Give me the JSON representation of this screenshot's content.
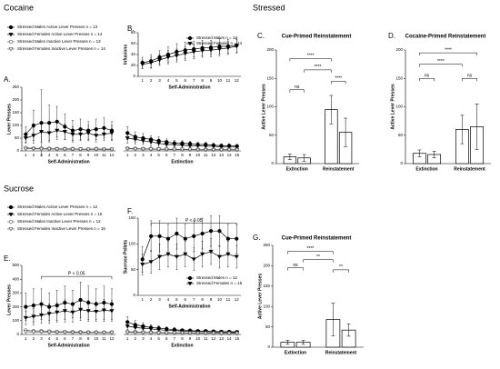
{
  "sections": [
    "Cocaine",
    "Stressed",
    "Sucrose"
  ],
  "chart_data": [
    {
      "type": "line",
      "label": "A.",
      "ylabel": "Lever Presses",
      "xlabel": [
        "Self-Administration",
        "Extinction"
      ],
      "categories": [
        1,
        2,
        3,
        4,
        5,
        6,
        7,
        8,
        9,
        10,
        11,
        12,
        1,
        2,
        3,
        4,
        5,
        6,
        7,
        8,
        9,
        10,
        11,
        12,
        13,
        14,
        15
      ],
      "ylim": [
        0,
        250
      ],
      "yticks": [
        0,
        50,
        100,
        150,
        200,
        250
      ],
      "legend": "outside-top-left",
      "series": [
        {
          "name": "Stressed Males Active Lever Presses n = 13",
          "marker": "circle",
          "color": "#000000",
          "fill": "#000000",
          "values": [
            65,
            100,
            110,
            110,
            115,
            95,
            80,
            85,
            80,
            85,
            90,
            80,
            70,
            55,
            50,
            45,
            40,
            35,
            30,
            30,
            28,
            25,
            25,
            22,
            20,
            20,
            18
          ],
          "errors": [
            30,
            60,
            130,
            70,
            60,
            50,
            40,
            40,
            35,
            40,
            40,
            35,
            25,
            20,
            18,
            15,
            15,
            12,
            12,
            10,
            10,
            10,
            10,
            8,
            8,
            8,
            8
          ]
        },
        {
          "name": "Stressed Females Active Lever Presses n = 14",
          "marker": "triangle",
          "color": "#000000",
          "fill": "#000000",
          "values": [
            50,
            60,
            75,
            70,
            80,
            75,
            65,
            65,
            70,
            60,
            65,
            70,
            50,
            45,
            40,
            35,
            30,
            25,
            25,
            22,
            20,
            20,
            18,
            18,
            15,
            15,
            15
          ],
          "errors": [
            20,
            30,
            40,
            35,
            35,
            30,
            30,
            25,
            30,
            25,
            25,
            30,
            20,
            18,
            15,
            15,
            12,
            10,
            10,
            10,
            8,
            8,
            8,
            8,
            6,
            6,
            6
          ]
        },
        {
          "name": "Stressed Males Inactive Lever Presses n = 13",
          "marker": "circle",
          "color": "#555555",
          "fill": "#ffffff",
          "values": [
            12,
            10,
            10,
            9,
            8,
            8,
            8,
            7,
            7,
            8,
            7,
            7,
            10,
            9,
            8,
            8,
            7,
            7,
            6,
            6,
            6,
            5,
            5,
            5,
            5,
            5,
            5
          ],
          "errors": [
            5,
            5,
            5,
            5,
            5,
            5,
            5,
            5,
            5,
            5,
            5,
            5,
            5,
            5,
            5,
            5,
            5,
            5,
            5,
            5,
            5,
            5,
            5,
            5,
            5,
            5,
            5
          ]
        },
        {
          "name": "Stressed Females Inactive Lever Presses n = 14",
          "marker": "triangle",
          "color": "#555555",
          "fill": "#ffffff",
          "values": [
            8,
            8,
            7,
            7,
            6,
            6,
            6,
            6,
            5,
            6,
            5,
            5,
            8,
            7,
            7,
            6,
            6,
            5,
            5,
            5,
            5,
            4,
            4,
            4,
            4,
            4,
            4
          ],
          "errors": [
            4,
            4,
            4,
            4,
            4,
            4,
            4,
            4,
            4,
            4,
            4,
            4,
            4,
            4,
            4,
            4,
            4,
            4,
            4,
            4,
            4,
            4,
            4,
            4,
            4,
            4,
            4
          ]
        }
      ]
    },
    {
      "type": "line",
      "label": "B.",
      "ylabel": "Infusions",
      "xlabel": [
        "Self-Administration"
      ],
      "categories": [
        1,
        2,
        3,
        4,
        5,
        6,
        7,
        8,
        9,
        10,
        11,
        12
      ],
      "ylim": [
        0,
        80
      ],
      "yticks": [
        0,
        20,
        40,
        60,
        80
      ],
      "legend": "upper-right",
      "series": [
        {
          "name": "Stressed Males n = 13",
          "marker": "circle",
          "color": "#000000",
          "fill": "#000000",
          "values": [
            25,
            28,
            35,
            40,
            45,
            48,
            50,
            52,
            53,
            55,
            55,
            57
          ],
          "errors": [
            10,
            12,
            12,
            14,
            15,
            15,
            14,
            14,
            13,
            14,
            13,
            13
          ]
        },
        {
          "name": "Stressed Females n = 14",
          "marker": "triangle",
          "color": "#000000",
          "fill": "#000000",
          "values": [
            22,
            25,
            30,
            35,
            38,
            42,
            45,
            47,
            48,
            50,
            52,
            55
          ],
          "errors": [
            8,
            10,
            10,
            12,
            12,
            13,
            13,
            12,
            12,
            12,
            12,
            12
          ]
        }
      ]
    },
    {
      "type": "bar",
      "label": "C.",
      "title": "Cue-Primed Reinstatement",
      "ylabel": "Active Lever Presses",
      "categories": [
        "Extinction",
        "Reinstatement"
      ],
      "ylim": [
        0,
        200
      ],
      "yticks": [
        0,
        50,
        100,
        150,
        200
      ],
      "annotations": [
        "ns",
        "****",
        "****",
        "****"
      ],
      "series": [
        {
          "color": "#ffffff",
          "values": [
            12,
            95
          ],
          "errors": [
            5,
            25
          ]
        },
        {
          "color": "#ffffff",
          "values": [
            10,
            55
          ],
          "errors": [
            6,
            25
          ]
        }
      ]
    },
    {
      "type": "bar",
      "label": "D.",
      "title": "Cocaine-Primed Reinstatement",
      "ylabel": "Active Lever Presses",
      "categories": [
        "Extinction",
        "Reinstatement"
      ],
      "ylim": [
        0,
        200
      ],
      "yticks": [
        0,
        50,
        100,
        150,
        200
      ],
      "annotations": [
        "****",
        "****",
        "ns",
        "ns"
      ],
      "series": [
        {
          "color": "#ffffff",
          "values": [
            18,
            60
          ],
          "errors": [
            6,
            25
          ]
        },
        {
          "color": "#ffffff",
          "values": [
            16,
            65
          ],
          "errors": [
            6,
            40
          ]
        }
      ]
    },
    {
      "type": "line",
      "label": "E.",
      "ylabel": "Lever Presses",
      "xlabel": [
        "Self-Administration",
        "Extinction"
      ],
      "categories": [
        1,
        2,
        3,
        4,
        5,
        6,
        7,
        8,
        9,
        10,
        11,
        12,
        1,
        2,
        3,
        4,
        5,
        6,
        7,
        8,
        9,
        10,
        11,
        12,
        13,
        14,
        15
      ],
      "ylim": [
        0,
        500
      ],
      "yticks": [
        0,
        100,
        200,
        300,
        400,
        500
      ],
      "legend": "outside-top-left",
      "annotations": [
        "P < 0.05"
      ],
      "series": [
        {
          "name": "Stressed Males Active Lever Presses n = 12",
          "marker": "circle",
          "color": "#000000",
          "fill": "#000000",
          "values": [
            200,
            210,
            220,
            200,
            210,
            230,
            220,
            250,
            230,
            220,
            230,
            220,
            90,
            70,
            60,
            50,
            45,
            40,
            35,
            30,
            28,
            25,
            25,
            22,
            20,
            20,
            18
          ],
          "errors": [
            100,
            120,
            110,
            100,
            110,
            120,
            100,
            130,
            120,
            110,
            120,
            110,
            40,
            30,
            25,
            20,
            18,
            15,
            15,
            12,
            12,
            10,
            10,
            10,
            8,
            8,
            8
          ]
        },
        {
          "name": "Stressed Females Active Lever Presses n = 15",
          "marker": "triangle",
          "color": "#000000",
          "fill": "#000000",
          "values": [
            120,
            130,
            140,
            150,
            160,
            170,
            160,
            180,
            170,
            165,
            175,
            170,
            60,
            50,
            45,
            40,
            35,
            30,
            28,
            25,
            22,
            20,
            20,
            18,
            16,
            15,
            15
          ],
          "errors": [
            50,
            60,
            60,
            70,
            70,
            80,
            70,
            80,
            75,
            70,
            80,
            75,
            25,
            20,
            18,
            15,
            15,
            12,
            12,
            10,
            10,
            8,
            8,
            8,
            6,
            6,
            6
          ]
        },
        {
          "name": "Stressed Males Inactive Lever Presses n = 12",
          "marker": "circle",
          "color": "#555555",
          "fill": "#ffffff",
          "values": [
            30,
            25,
            25,
            22,
            20,
            20,
            18,
            18,
            17,
            17,
            16,
            16,
            20,
            18,
            16,
            15,
            14,
            13,
            12,
            12,
            11,
            10,
            10,
            10,
            9,
            9,
            9
          ],
          "errors": [
            10,
            10,
            10,
            10,
            10,
            10,
            10,
            10,
            10,
            10,
            10,
            10,
            10,
            10,
            10,
            10,
            10,
            10,
            10,
            10,
            10,
            10,
            10,
            10,
            10,
            10,
            10
          ]
        },
        {
          "name": "Stressed Females Inactive Lever Presses n = 15",
          "marker": "triangle",
          "color": "#555555",
          "fill": "#ffffff",
          "values": [
            20,
            18,
            18,
            16,
            15,
            15,
            14,
            14,
            13,
            13,
            12,
            12,
            15,
            14,
            13,
            12,
            11,
            10,
            10,
            9,
            9,
            8,
            8,
            8,
            7,
            7,
            7
          ],
          "errors": [
            8,
            8,
            8,
            8,
            8,
            8,
            8,
            8,
            8,
            8,
            8,
            8,
            8,
            8,
            8,
            8,
            8,
            8,
            8,
            8,
            8,
            8,
            8,
            8,
            8,
            8,
            8
          ]
        }
      ]
    },
    {
      "type": "line",
      "label": "F.",
      "ylabel": "Sucrose Pellets",
      "xlabel": [
        "Self-Administration"
      ],
      "categories": [
        1,
        2,
        3,
        4,
        5,
        6,
        7,
        8,
        9,
        10,
        11,
        12
      ],
      "ylim": [
        0,
        150
      ],
      "yticks": [
        0,
        50,
        100,
        150
      ],
      "legend": "lower-right",
      "annotations": [
        "P < 0.05"
      ],
      "series": [
        {
          "name": "Stressed Males n = 12",
          "marker": "circle",
          "color": "#000000",
          "fill": "#000000",
          "values": [
            70,
            115,
            115,
            110,
            120,
            110,
            115,
            120,
            125,
            125,
            110,
            110
          ],
          "errors": [
            25,
            30,
            30,
            28,
            30,
            28,
            30,
            30,
            30,
            30,
            28,
            28
          ]
        },
        {
          "name": "Stressed Females n = 15",
          "marker": "triangle",
          "color": "#000000",
          "fill": "#000000",
          "values": [
            60,
            65,
            75,
            80,
            75,
            80,
            70,
            80,
            85,
            75,
            80,
            75
          ],
          "errors": [
            20,
            22,
            25,
            25,
            25,
            25,
            22,
            25,
            25,
            22,
            25,
            22
          ]
        }
      ]
    },
    {
      "type": "bar",
      "label": "G.",
      "title": "Cue-Primed Reinstatement",
      "ylabel": "Active Lever Presses",
      "categories": [
        "Extinction",
        "Reinstatement"
      ],
      "ylim": [
        0,
        250
      ],
      "yticks": [
        0,
        50,
        100,
        150,
        200,
        250
      ],
      "annotations": [
        "****",
        "ns",
        "**",
        "**"
      ],
      "series": [
        {
          "color": "#ffffff",
          "values": [
            12,
            68
          ],
          "errors": [
            5,
            40
          ]
        },
        {
          "color": "#ffffff",
          "values": [
            12,
            42
          ],
          "errors": [
            5,
            15
          ]
        }
      ]
    }
  ]
}
